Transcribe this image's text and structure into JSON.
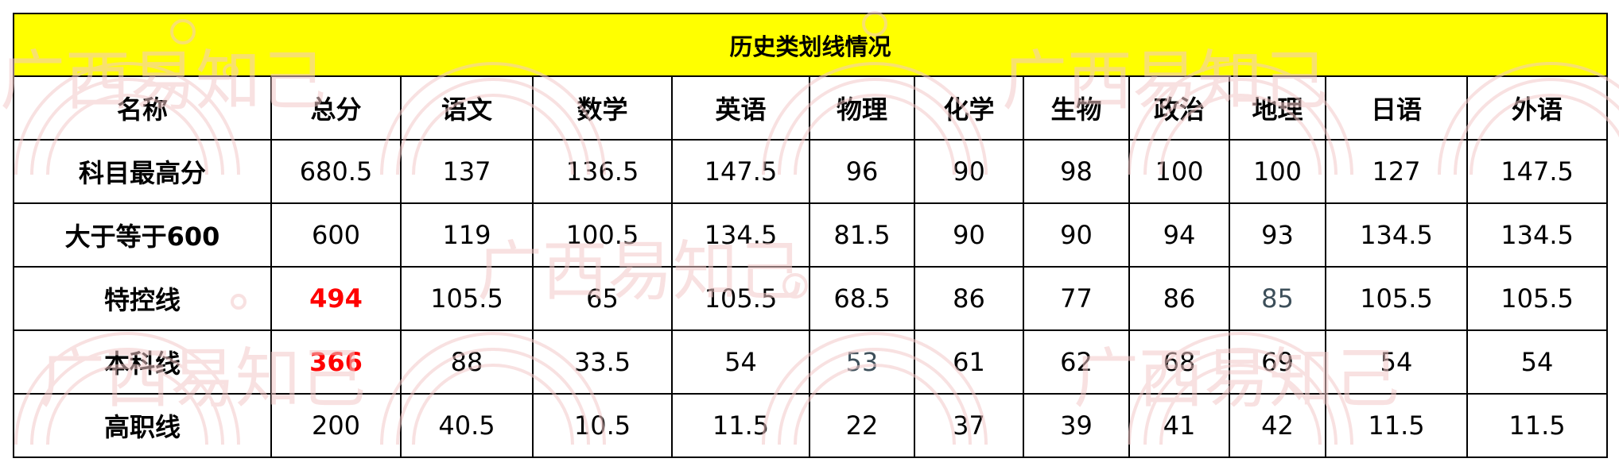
{
  "title": "历史类划线情况",
  "headers": [
    "名称",
    "总分",
    "语文",
    "数学",
    "英语",
    "物理",
    "化学",
    "生物",
    "政治",
    "地理",
    "日语",
    "外语"
  ],
  "rows": [
    {
      "label": "科目最高分",
      "values": [
        "680.5",
        "137",
        "136.5",
        "147.5",
        "96",
        "90",
        "98",
        "100",
        "100",
        "127",
        "147.5"
      ]
    },
    {
      "label": "大于等于600",
      "values": [
        "600",
        "119",
        "100.5",
        "134.5",
        "81.5",
        "90",
        "90",
        "94",
        "93",
        "134.5",
        "134.5"
      ]
    },
    {
      "label": "特控线",
      "values": [
        "494",
        "105.5",
        "65",
        "105.5",
        "68.5",
        "86",
        "77",
        "86",
        "85",
        "105.5",
        "105.5"
      ]
    },
    {
      "label": "本科线",
      "values": [
        "366",
        "88",
        "33.5",
        "54",
        "53",
        "61",
        "62",
        "68",
        "69",
        "54",
        "54"
      ]
    },
    {
      "label": "高职线",
      "values": [
        "200",
        "40.5",
        "10.5",
        "11.5",
        "22",
        "37",
        "39",
        "41",
        "42",
        "11.5",
        "11.5"
      ]
    }
  ],
  "highlight_color": "#ff0000",
  "title_background": "#ffff00",
  "watermark": "广西易知己"
}
